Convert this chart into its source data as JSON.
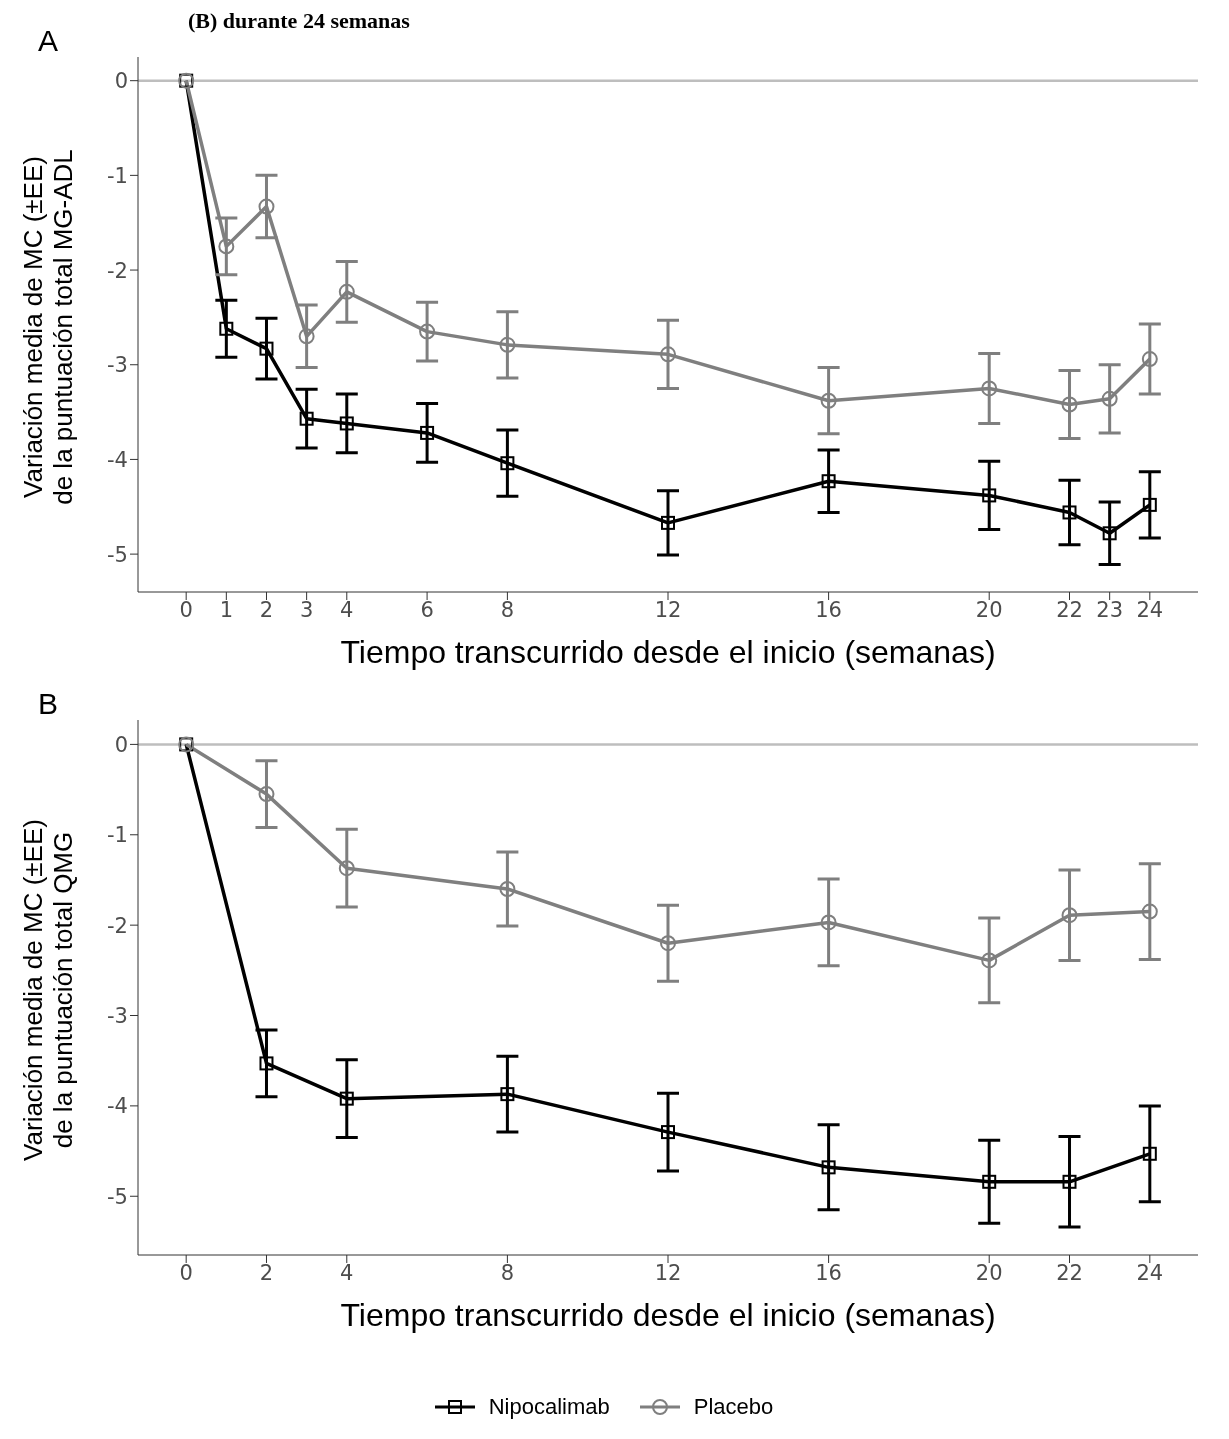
{
  "chart_data": [
    {
      "type": "line",
      "title": "A",
      "annotations": [
        "(B) durante 24 semanas"
      ],
      "xlabel": "Tiempo transcurrido desde el inicio (semanas)",
      "ylabel": "Variación media de MC (±EE)\nde la puntuación total MG-ADL",
      "xlim": [
        -1.2,
        25.2
      ],
      "xticks": [
        0,
        1,
        2,
        3,
        4,
        6,
        8,
        12,
        16,
        20,
        22,
        23,
        24
      ],
      "ylim": [
        -5.4,
        0.25
      ],
      "yticks": [
        -5,
        -4,
        -3,
        -2,
        -1,
        0
      ],
      "grid": false,
      "legend": false,
      "line_style": "solid",
      "ref_lines": [
        {
          "axis": "y",
          "value": 0,
          "color": "#bebebe"
        }
      ],
      "series": [
        {
          "color": "#000000",
          "marker": "square",
          "x": [
            0,
            1,
            2,
            3,
            4,
            6,
            8,
            12,
            16,
            20,
            22,
            23,
            24
          ],
          "values": [
            0,
            -2.62,
            -2.83,
            -3.57,
            -3.62,
            -3.72,
            -4.04,
            -4.67,
            -4.23,
            -4.38,
            -4.56,
            -4.78,
            -4.48
          ],
          "errors": [
            null,
            0.3,
            0.32,
            0.31,
            0.31,
            0.31,
            0.35,
            0.34,
            0.33,
            0.36,
            0.34,
            0.33,
            0.35
          ]
        },
        {
          "color": "#7f7f7f",
          "marker": "circle",
          "x": [
            0,
            1,
            2,
            3,
            4,
            6,
            8,
            12,
            16,
            20,
            22,
            23,
            24
          ],
          "values": [
            0,
            -1.75,
            -1.33,
            -2.7,
            -2.23,
            -2.65,
            -2.79,
            -2.89,
            -3.38,
            -3.25,
            -3.42,
            -3.36,
            -2.94
          ],
          "errors": [
            null,
            0.3,
            0.33,
            0.33,
            0.32,
            0.31,
            0.35,
            0.36,
            0.35,
            0.37,
            0.36,
            0.36,
            0.37
          ]
        }
      ]
    },
    {
      "type": "line",
      "title": "B",
      "xlabel": "Tiempo transcurrido desde el inicio (semanas)",
      "ylabel": "Variación media de MC (±EE)\nde la puntuación total QMG",
      "xlim": [
        -1.2,
        25.2
      ],
      "xticks": [
        0,
        2,
        4,
        8,
        12,
        16,
        20,
        22,
        24
      ],
      "ylim": [
        -5.65,
        0.27
      ],
      "yticks": [
        -5,
        -4,
        -3,
        -2,
        -1,
        0
      ],
      "grid": false,
      "legend": "bottom",
      "line_style": "solid",
      "ref_lines": [
        {
          "axis": "y",
          "value": 0,
          "color": "#bebebe"
        }
      ],
      "series": [
        {
          "name": "Nipocalimab",
          "color": "#000000",
          "marker": "square",
          "x": [
            0,
            2,
            4,
            8,
            12,
            16,
            20,
            22,
            24
          ],
          "values": [
            0,
            -3.53,
            -3.92,
            -3.87,
            -4.29,
            -4.68,
            -4.84,
            -4.84,
            -4.53
          ],
          "errors": [
            null,
            0.37,
            0.43,
            0.42,
            0.43,
            0.47,
            0.46,
            0.5,
            0.53
          ]
        },
        {
          "name": "Placebo",
          "color": "#7f7f7f",
          "marker": "circle",
          "x": [
            0,
            2,
            4,
            8,
            12,
            16,
            20,
            22,
            24
          ],
          "values": [
            0,
            -0.55,
            -1.37,
            -1.6,
            -2.2,
            -1.97,
            -2.39,
            -1.89,
            -1.85
          ],
          "errors": [
            null,
            0.37,
            0.43,
            0.41,
            0.42,
            0.48,
            0.47,
            0.5,
            0.53
          ]
        }
      ]
    }
  ]
}
